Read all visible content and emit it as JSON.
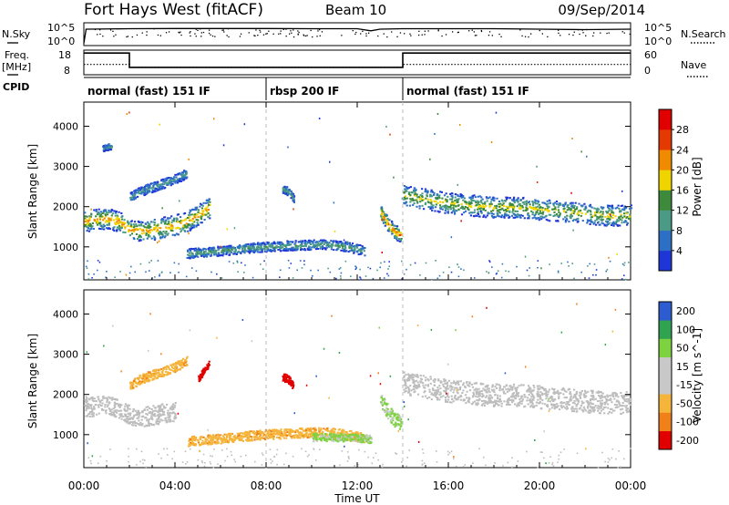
{
  "header": {
    "station": "Fort Hays West (fitACF)",
    "beam": "Beam 10",
    "date": "09/Sep/2014"
  },
  "labels": {
    "nsky": "N.Sky",
    "nsearch": "N.Search",
    "freq": "Freq.",
    "mhz": "[MHz]",
    "nave": "Nave",
    "cpid": "CPID",
    "sup_five": "5",
    "sup_zero": "0",
    "ten": "10",
    "sep": "^"
  },
  "cpid_segments": [
    {
      "label": "normal (fast) 151 IF",
      "start": 0,
      "end": 8
    },
    {
      "label": "rbsp 200 IF",
      "start": 8,
      "end": 14
    },
    {
      "label": "normal (fast) 151 IF",
      "start": 14,
      "end": 24
    }
  ],
  "colors": {
    "power": [
      "#1f36d6",
      "#2d6fc4",
      "#4b9a86",
      "#3d8a3d",
      "#f0d400",
      "#f08a00",
      "#e23a00",
      "#e00000"
    ],
    "velocity": [
      "#e00000",
      "#f0801a",
      "#f5b53a",
      "#c8c8c8",
      "#c8c8c8",
      "#7dd33f",
      "#2fa34f",
      "#2d5bd0"
    ],
    "ground_scatter": "#bdbdbd"
  },
  "chart_data": [
    {
      "type": "line",
      "title": "N.Sky / N.Search",
      "x_range_hours": [
        0,
        24
      ],
      "yticks": [
        "10^5",
        "10^0"
      ],
      "yticks_right": [
        "10^5",
        "10^0"
      ],
      "legend": "N.Search",
      "series": [
        {
          "name": "N.Sky",
          "x": [
            0,
            0.1,
            0.2,
            2,
            4,
            6,
            8,
            10,
            12,
            12.6,
            13,
            14,
            16,
            18,
            20,
            22,
            24
          ],
          "y": [
            0.1,
            0.72,
            0.72,
            0.74,
            0.75,
            0.75,
            0.75,
            0.74,
            0.74,
            0.65,
            0.72,
            0.74,
            0.74,
            0.74,
            0.72,
            0.7,
            0.72
          ]
        }
      ]
    },
    {
      "type": "line",
      "title": "Freq. [MHz] / Nave",
      "x_range_hours": [
        0,
        24
      ],
      "yticks": [
        "18",
        "8"
      ],
      "yticks_right": [
        "60",
        "0"
      ],
      "legend": "Nave",
      "series": [
        {
          "name": "Freq.",
          "x": [
            0,
            2,
            2,
            14,
            14,
            24
          ],
          "y": [
            0.88,
            0.88,
            0.3,
            0.3,
            0.88,
            0.88
          ]
        },
        {
          "name": "Nave",
          "x": [
            0,
            2,
            2,
            14,
            14,
            24
          ],
          "y": [
            0.42,
            0.42,
            0.3,
            0.3,
            0.42,
            0.42
          ]
        }
      ]
    },
    {
      "type": "heatmap",
      "quantity": "Power",
      "ylabel": "Slant Range [km]",
      "ylim": [
        180,
        4600
      ],
      "yticks": [
        1000,
        2000,
        3000,
        4000
      ],
      "colorbar_label": "Power [dB]",
      "colorbar_ticks": [
        4,
        8,
        12,
        16,
        20,
        24,
        28
      ],
      "colorbar_range": [
        0,
        32
      ],
      "regions": [
        {
          "x": [
            0,
            0.5,
            1,
            1.5,
            2,
            2.5,
            3,
            3.5,
            4,
            4.5,
            5,
            5.5
          ],
          "y": [
            1650,
            1700,
            1720,
            1650,
            1450,
            1400,
            1450,
            1500,
            1550,
            1650,
            1800,
            2000
          ],
          "spread": 260,
          "power": 20
        },
        {
          "x": [
            2,
            2.5,
            3,
            3.5,
            4,
            4.5
          ],
          "y": [
            2250,
            2400,
            2500,
            2600,
            2700,
            2850
          ],
          "spread": 120,
          "power": 8
        },
        {
          "x": [
            0.8,
            1,
            1.2
          ],
          "y": [
            3450,
            3500,
            3520
          ],
          "spread": 80,
          "power": 8
        },
        {
          "x": [
            4.5,
            6,
            7.5,
            9,
            10.5,
            11.5,
            12.3
          ],
          "y": [
            850,
            920,
            1000,
            1050,
            1080,
            1020,
            920
          ],
          "spread": 120,
          "power": 10
        },
        {
          "x": [
            8.7,
            9,
            9.2
          ],
          "y": [
            2450,
            2380,
            2200
          ],
          "spread": 100,
          "power": 10
        },
        {
          "x": [
            13,
            13.3,
            13.6,
            13.9
          ],
          "y": [
            1900,
            1600,
            1400,
            1300
          ],
          "spread": 180,
          "power": 22
        },
        {
          "x": [
            14,
            15,
            16,
            17,
            18,
            19,
            20,
            21,
            22,
            23,
            24
          ],
          "y": [
            2300,
            2200,
            2100,
            2050,
            2000,
            2000,
            1950,
            1900,
            1850,
            1800,
            1800
          ],
          "spread": 260,
          "power": 16
        }
      ],
      "ground_scatter_band": {
        "y": [
          180,
          700
        ],
        "power": 6
      }
    },
    {
      "type": "heatmap",
      "quantity": "Velocity",
      "xlabel": "Time UT",
      "ylabel": "Slant Range [km]",
      "x_range_hours": [
        0,
        24
      ],
      "xticks": [
        "00:00",
        "04:00",
        "08:00",
        "12:00",
        "16:00",
        "20:00",
        "00:00"
      ],
      "ylim": [
        180,
        4600
      ],
      "yticks": [
        1000,
        2000,
        3000,
        4000
      ],
      "colorbar_label": "Velocity [m s^-1]",
      "colorbar_ticks": [
        200,
        100,
        50,
        15,
        -15,
        -50,
        -100,
        -200
      ],
      "regions": [
        {
          "x": [
            0,
            0.5,
            1,
            1.5,
            2,
            2.5,
            3,
            3.5,
            4
          ],
          "y": [
            1700,
            1720,
            1750,
            1680,
            1500,
            1450,
            1500,
            1550,
            1600
          ],
          "spread": 240,
          "velocity": 0
        },
        {
          "x": [
            2,
            2.5,
            3,
            3.5,
            4,
            4.5
          ],
          "y": [
            2250,
            2400,
            2500,
            2600,
            2700,
            2850
          ],
          "spread": 120,
          "velocity": -60
        },
        {
          "x": [
            5,
            5.3,
            5.5
          ],
          "y": [
            2400,
            2650,
            2800
          ],
          "spread": 80,
          "velocity": -220
        },
        {
          "x": [
            4.5,
            6,
            7.5,
            9,
            10.5,
            11.5,
            12.3
          ],
          "y": [
            850,
            920,
            1000,
            1050,
            1080,
            1020,
            920
          ],
          "spread": 120,
          "velocity": -60
        },
        {
          "x": [
            8.7,
            9,
            9.2
          ],
          "y": [
            2450,
            2380,
            2200
          ],
          "spread": 100,
          "velocity": -220
        },
        {
          "x": [
            10,
            11,
            12,
            12.6
          ],
          "y": [
            950,
            950,
            930,
            900
          ],
          "spread": 100,
          "velocity": 40
        },
        {
          "x": [
            13,
            13.3,
            13.6,
            13.9
          ],
          "y": [
            1900,
            1600,
            1400,
            1300
          ],
          "spread": 180,
          "velocity": 40
        },
        {
          "x": [
            14,
            15,
            16,
            17,
            18,
            19,
            20,
            21,
            22,
            23,
            24
          ],
          "y": [
            2300,
            2200,
            2100,
            2050,
            2000,
            2000,
            1950,
            1900,
            1850,
            1800,
            1800
          ],
          "spread": 280,
          "velocity": 0
        }
      ]
    }
  ]
}
